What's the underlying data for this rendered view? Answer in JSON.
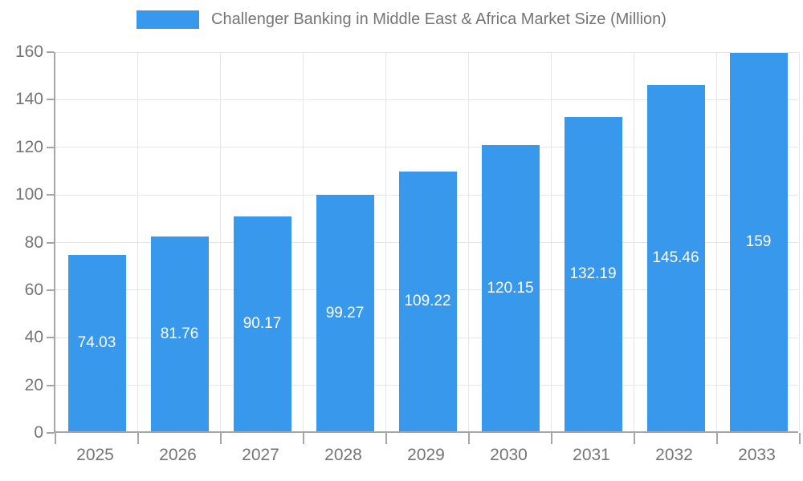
{
  "chart_data": {
    "type": "bar",
    "title": "Challenger Banking in Middle East & Africa Market Size (Million)",
    "categories": [
      "2025",
      "2026",
      "2027",
      "2028",
      "2029",
      "2030",
      "2031",
      "2032",
      "2033"
    ],
    "values": [
      74.03,
      81.76,
      90.17,
      99.27,
      109.22,
      120.15,
      132.19,
      145.46,
      159
    ],
    "value_labels": [
      "74.03",
      "81.76",
      "90.17",
      "99.27",
      "109.22",
      "120.15",
      "132.19",
      "145.46",
      "159"
    ],
    "xlabel": "",
    "ylabel": "",
    "ylim": [
      0,
      160
    ],
    "yticks": [
      0,
      20,
      40,
      60,
      80,
      100,
      120,
      140,
      160
    ],
    "grid": true,
    "legend_position": "top-center",
    "bar_label_position": "inside-center",
    "colors": {
      "bar": "#3899EC",
      "grid": "#E6E6E6",
      "axis": "#A6A6A6",
      "text": "#757575",
      "bar_label": "#FFFFFF",
      "background": "#FFFFFF"
    }
  }
}
